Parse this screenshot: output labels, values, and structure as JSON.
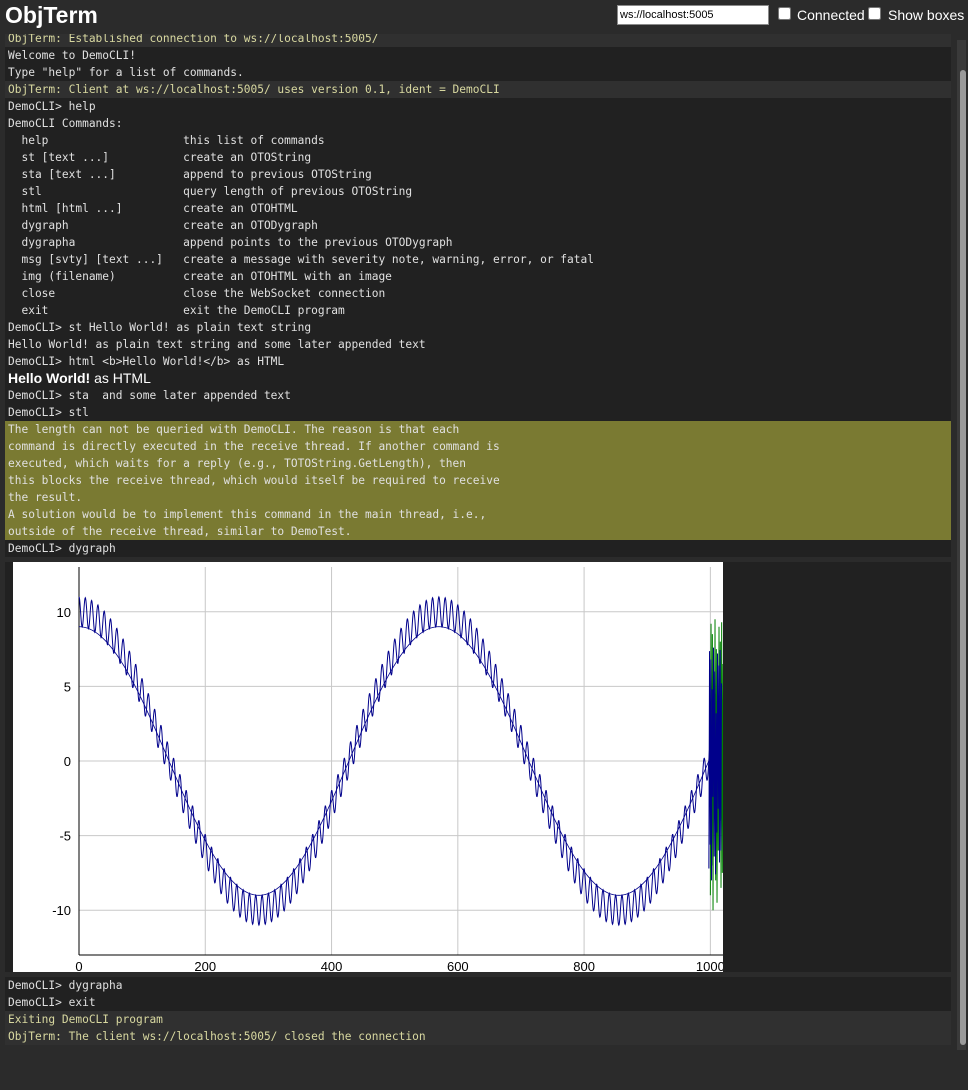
{
  "app": {
    "title": "ObjTerm"
  },
  "header": {
    "url_value": "ws://localhost:5005",
    "connected_label": "Connected",
    "connected_checked": false,
    "show_boxes_label": "Show boxes",
    "show_boxes_checked": false
  },
  "colors": {
    "background": "#2b2b2b",
    "cli_block": "#212121",
    "system_text": "#d8d8a0",
    "warning_block": "#7a7a32",
    "series_1": "#00008b",
    "series_2": "#008000"
  },
  "terminal": {
    "partial_top": "ObjTerm: Established connection to ws://localhost:5005/",
    "welcome": [
      "Welcome to DemoCLI!",
      "Type \"help\" for a list of commands."
    ],
    "client_info": "ObjTerm: Client at ws://localhost:5005/ uses version 0.1, ident = DemoCLI",
    "help_block": [
      "DemoCLI> help",
      "DemoCLI Commands:",
      "  help                    this list of commands",
      "  st [text ...]           create an OTOString",
      "  sta [text ...]          append to previous OTOString",
      "  stl                     query length of previous OTOString",
      "  html [html ...]         create an OTOHTML",
      "  dygraph                 create an OTODygraph",
      "  dygrapha                append points to the previous OTODygraph",
      "  msg [svty] [text ...]   create a message with severity note, warning, error, or fatal",
      "  img (filename)          create an OTOHTML with an image",
      "  close                   close the WebSocket connection",
      "  exit                    exit the DemoCLI program",
      "DemoCLI> st Hello World! as plain text string",
      "Hello World! as plain text string and some later appended text",
      "DemoCLI> html <b>Hello World!</b> as HTML"
    ],
    "html_bold": "Hello World!",
    "html_rest": " as HTML",
    "after_html": [
      "DemoCLI> sta  and some later appended text",
      "DemoCLI> stl"
    ],
    "warning_block": [
      "The length can not be queried with DemoCLI. The reason is that each",
      "command is directly executed in the receive thread. If another command is",
      "executed, which waits for a reply (e.g., TOTOString.GetLength), then",
      "this blocks the receive thread, which would itself be required to receive",
      "the result.",
      "A solution would be to implement this command in the main thread, i.e.,",
      "outside of the receive thread, similar to DemoTest."
    ],
    "dygraph_cmd": "DemoCLI> dygraph",
    "after_chart": [
      "DemoCLI> dygrapha",
      "DemoCLI> exit"
    ],
    "final_system": [
      "Exiting DemoCLI program",
      "ObjTerm: The client ws://localhost:5005/ closed the connection"
    ]
  },
  "chart_data": {
    "type": "line",
    "title": "",
    "xlabel": "",
    "ylabel": "",
    "xlim": [
      0,
      1020
    ],
    "ylim": [
      -13,
      13
    ],
    "x_ticks": [
      0,
      200,
      400,
      600,
      800,
      1000
    ],
    "y_ticks": [
      10,
      5,
      0,
      -5,
      -10
    ],
    "grid": true,
    "series": [
      {
        "color": "#00008b",
        "description_values": {
          "amplitude": 10,
          "period": 570,
          "ripple_amplitude": 1,
          "ripple_period": 10,
          "x_start": 0,
          "x_end": 1000
        }
      },
      {
        "color": "#00008b",
        "description_values": {
          "amplitude": 9,
          "period": 570,
          "ripple_amplitude": 0,
          "x_start": 0,
          "x_end": 1000
        }
      },
      {
        "color": "#008000",
        "description_values": {
          "x_start": 1000,
          "x_end": 1020,
          "y_min": -10,
          "y_max": 9.5
        }
      }
    ]
  }
}
